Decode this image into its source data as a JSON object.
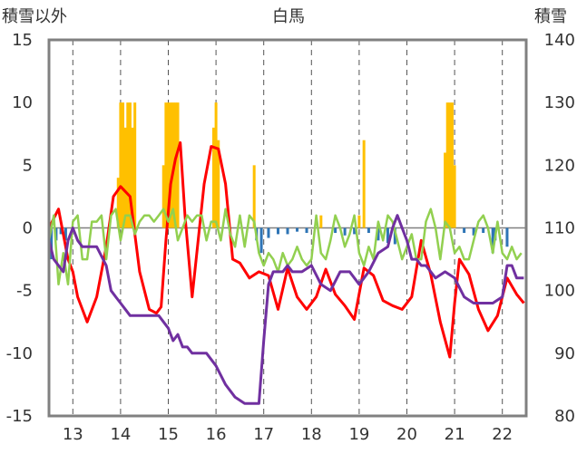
{
  "chart_data": {
    "type": "line",
    "title": "白馬",
    "y_left_label": "積雪以外",
    "y_right_label": "積雪",
    "y_left_range": [
      -15,
      15
    ],
    "y_right_range": [
      80,
      140
    ],
    "y_left_ticks": [
      "15",
      "10",
      "5",
      "0",
      "-5",
      "-10",
      "-15"
    ],
    "y_right_ticks": [
      "140",
      "130",
      "120",
      "110",
      "100",
      "90",
      "80"
    ],
    "x_range": [
      12.5,
      22.5
    ],
    "x_ticks": [
      "13",
      "14",
      "15",
      "16",
      "17",
      "18",
      "19",
      "20",
      "21",
      "22"
    ],
    "grid": "vertical dashed",
    "series": [
      {
        "type": "bar",
        "color": "#FFC000",
        "axis": "left",
        "x": [
          13.95,
          14.0,
          14.05,
          14.1,
          14.15,
          14.2,
          14.25,
          14.3,
          14.9,
          14.95,
          15.0,
          15.05,
          15.1,
          15.15,
          15.2,
          15.95,
          16.0,
          16.05,
          16.8,
          18.2,
          19.0,
          19.1,
          20.8,
          20.85,
          20.9,
          20.95,
          21.0
        ],
        "values": [
          4,
          10,
          10,
          8,
          10,
          10,
          8,
          10,
          5,
          10,
          10,
          10,
          10,
          10,
          10,
          8,
          10,
          7,
          5,
          1,
          1,
          7,
          6,
          10,
          10,
          10,
          5
        ]
      },
      {
        "type": "bar",
        "color": "#2E75B6",
        "axis": "left",
        "x": [
          12.55,
          12.65,
          12.75,
          12.85,
          16.85,
          16.95,
          17.1,
          17.3,
          17.5,
          17.7,
          17.9,
          18.5,
          18.7,
          18.9,
          19.2,
          19.4,
          19.6,
          19.75,
          21.2,
          21.4,
          21.6,
          21.8,
          21.85,
          22.1
        ],
        "values": [
          -2.5,
          -1,
          -0.5,
          -1,
          -1,
          -2,
          -0.8,
          -0.5,
          -0.5,
          -0.3,
          -0.4,
          -0.4,
          -0.6,
          -0.5,
          -0.4,
          -1,
          -1.2,
          -1.3,
          -0.4,
          -0.6,
          -0.4,
          -2,
          -1,
          -1.5
        ]
      },
      {
        "type": "line",
        "color": "#FF0000",
        "axis": "left",
        "x": [
          12.5,
          12.7,
          12.9,
          13.0,
          13.1,
          13.3,
          13.5,
          13.7,
          13.85,
          14.0,
          14.2,
          14.4,
          14.6,
          14.75,
          14.85,
          14.95,
          15.05,
          15.15,
          15.25,
          15.35,
          15.5,
          15.75,
          15.9,
          16.05,
          16.2,
          16.35,
          16.5,
          16.7,
          16.9,
          17.1,
          17.3,
          17.5,
          17.7,
          17.9,
          18.1,
          18.3,
          18.5,
          18.7,
          18.9,
          19.1,
          19.3,
          19.5,
          19.7,
          19.9,
          20.1,
          20.3,
          20.5,
          20.7,
          20.9,
          21.0,
          21.1,
          21.3,
          21.5,
          21.7,
          21.9,
          22.1,
          22.3,
          22.45
        ],
        "values": [
          0,
          1.5,
          -2.5,
          -3.5,
          -5.5,
          -7.5,
          -5.5,
          -1.5,
          2.5,
          3.3,
          2.5,
          -3.5,
          -6.5,
          -6.8,
          -6.3,
          -1,
          3.5,
          5.5,
          6.8,
          1,
          -5.5,
          3.5,
          6.5,
          6.3,
          3.5,
          -2.5,
          -2.8,
          -4,
          -3.5,
          -3.8,
          -6.5,
          -3.2,
          -5.5,
          -6.5,
          -5.5,
          -3.3,
          -5.3,
          -6.2,
          -7.3,
          -3.2,
          -3.8,
          -5.8,
          -6.2,
          -6.5,
          -5.5,
          -1,
          -3.7,
          -7.5,
          -10.3,
          -6,
          -2.5,
          -3.7,
          -6.5,
          -8.2,
          -7,
          -4,
          -5.3,
          -6
        ],
        "linewidth": 3
      },
      {
        "type": "line",
        "color": "#92D050",
        "axis": "left",
        "x": [
          12.5,
          12.6,
          12.7,
          12.8,
          12.9,
          13.0,
          13.1,
          13.2,
          13.3,
          13.4,
          13.5,
          13.6,
          13.7,
          13.8,
          13.9,
          14.0,
          14.1,
          14.2,
          14.3,
          14.4,
          14.5,
          14.6,
          14.7,
          14.8,
          14.9,
          15.0,
          15.1,
          15.2,
          15.3,
          15.4,
          15.5,
          15.6,
          15.7,
          15.8,
          15.9,
          16.0,
          16.1,
          16.2,
          16.3,
          16.4,
          16.5,
          16.6,
          16.7,
          16.8,
          16.9,
          17.0,
          17.1,
          17.2,
          17.3,
          17.4,
          17.5,
          17.6,
          17.7,
          17.8,
          17.9,
          18.0,
          18.1,
          18.2,
          18.3,
          18.4,
          18.5,
          18.6,
          18.7,
          18.8,
          18.9,
          19.0,
          19.1,
          19.2,
          19.3,
          19.4,
          19.5,
          19.6,
          19.7,
          19.8,
          19.9,
          20.0,
          20.1,
          20.2,
          20.3,
          20.4,
          20.5,
          20.6,
          20.7,
          20.8,
          20.9,
          21.0,
          21.1,
          21.2,
          21.3,
          21.4,
          21.5,
          21.6,
          21.7,
          21.8,
          21.9,
          22.0,
          22.1,
          22.2,
          22.3,
          22.4
        ],
        "values": [
          -1,
          1,
          -4.5,
          -2,
          -4.5,
          0.5,
          1,
          -2.5,
          -2.5,
          0.5,
          0.5,
          1,
          -2.5,
          1,
          1.5,
          -1,
          1,
          1,
          -0.5,
          0.5,
          1,
          1,
          0.5,
          1,
          1.5,
          0.5,
          1.5,
          -1,
          0,
          1,
          0.5,
          1,
          1,
          -1,
          0.5,
          0.5,
          -1,
          1.5,
          -0.5,
          -1.5,
          1,
          -1.5,
          1,
          0.5,
          -2,
          -3,
          -2,
          -2.5,
          -3.5,
          -2,
          -3,
          -2.5,
          -1.5,
          -2.5,
          -3,
          -2.5,
          1,
          -2,
          -2.5,
          -1,
          1,
          0,
          -1.5,
          -0.5,
          1,
          -2,
          -3,
          -1.5,
          -2.5,
          0.5,
          -1,
          1,
          0.5,
          -1,
          -2.5,
          -1.5,
          -0.5,
          -2.5,
          -2.5,
          0.5,
          1.5,
          0,
          -2.5,
          0.5,
          0,
          -2,
          -1.5,
          -2.5,
          -2.5,
          -1,
          0.5,
          1,
          0,
          -2,
          0.5,
          -2,
          -2.5,
          -1.5,
          -2.5,
          -2
        ]
      },
      {
        "type": "line",
        "color": "#7030A0",
        "axis": "right",
        "x": [
          12.5,
          12.6,
          12.7,
          12.8,
          12.9,
          13.0,
          13.1,
          13.2,
          13.3,
          13.5,
          13.7,
          13.8,
          13.9,
          14.0,
          14.1,
          14.2,
          14.3,
          14.4,
          14.5,
          14.6,
          14.8,
          15.0,
          15.1,
          15.2,
          15.3,
          15.4,
          15.5,
          15.6,
          15.8,
          16.0,
          16.2,
          16.4,
          16.6,
          16.8,
          16.9,
          17.0,
          17.1,
          17.2,
          17.3,
          17.4,
          17.5,
          17.6,
          17.8,
          18.0,
          18.2,
          18.4,
          18.6,
          18.8,
          19.0,
          19.1,
          19.2,
          19.4,
          19.6,
          19.7,
          19.8,
          19.9,
          20.0,
          20.1,
          20.2,
          20.3,
          20.4,
          20.6,
          20.8,
          21.0,
          21.2,
          21.4,
          21.6,
          21.8,
          22.0,
          22.1,
          22.2,
          22.3,
          22.45
        ],
        "values": [
          108,
          105,
          104,
          103,
          108,
          110,
          108,
          107,
          107,
          107,
          104,
          100,
          99,
          98,
          97,
          96,
          96,
          96,
          96,
          96,
          96,
          94,
          92,
          93,
          91,
          91,
          90,
          90,
          90,
          88,
          85,
          83,
          82,
          82,
          82,
          92,
          101,
          103,
          103,
          103,
          104,
          103,
          103,
          104,
          101,
          100,
          103,
          103,
          101,
          102,
          103,
          106,
          107,
          110,
          112,
          110,
          108,
          105,
          105,
          104,
          104,
          102,
          103,
          102,
          99,
          98,
          98,
          98,
          99,
          104,
          104,
          102,
          102
        ],
        "linewidth": 3
      }
    ]
  }
}
